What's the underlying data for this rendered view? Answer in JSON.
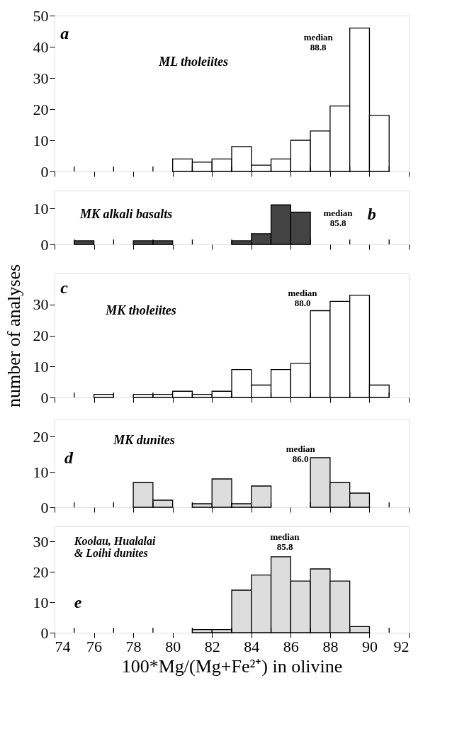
{
  "chart_data": [
    {
      "type": "histogram",
      "bins": [
        74,
        75,
        76,
        77,
        78,
        79,
        80,
        81,
        82,
        83,
        84,
        85,
        86,
        87,
        88,
        89,
        90,
        91
      ],
      "values": [
        0,
        0,
        0,
        0,
        0,
        0,
        4,
        3,
        4,
        8,
        2,
        4,
        10,
        13,
        21,
        46,
        18
      ],
      "color": "#ffffff",
      "xlim": [
        74,
        92
      ],
      "ylim": [
        0,
        50
      ],
      "yticks": [
        0,
        10,
        20,
        30,
        40,
        50
      ],
      "xticks": [
        74,
        {
          "value": 75,
          "label": null
        },
        76,
        {
          "value": 77,
          "label": null
        },
        78,
        {
          "value": 79,
          "label": null
        },
        80,
        {
          "value": 81,
          "label": null
        },
        82,
        {
          "value": 83,
          "label": null
        },
        84,
        {
          "value": 85,
          "label": null
        },
        86,
        {
          "value": 87,
          "label": null
        },
        88,
        {
          "value": 89,
          "label": null
        },
        90,
        {
          "value": 91,
          "label": null
        },
        92
      ],
      "tick_labels": "y",
      "annotations": [
        "a",
        "ML  tholeiites",
        "median\n88.8"
      ]
    },
    {
      "type": "histogram",
      "bins": [
        74,
        75,
        76,
        77,
        78,
        79,
        80,
        81,
        82,
        83,
        84,
        85,
        86,
        87,
        88,
        89,
        90,
        91
      ],
      "values": [
        0,
        1,
        0,
        0,
        1,
        1,
        0,
        0,
        0,
        1,
        3,
        11,
        9,
        0,
        0,
        0,
        0
      ],
      "color": "#444444",
      "xlim": [
        74,
        92
      ],
      "ylim": [
        0,
        15
      ],
      "yticks": [
        0,
        10
      ],
      "xticks": [
        74,
        {
          "value": 75,
          "label": null
        },
        76,
        {
          "value": 77,
          "label": null
        },
        78,
        {
          "value": 79,
          "label": null
        },
        80,
        {
          "value": 81,
          "label": null
        },
        82,
        {
          "value": 83,
          "label": null
        },
        84,
        {
          "value": 85,
          "label": null
        },
        86,
        {
          "value": 87,
          "label": null
        },
        88,
        {
          "value": 89,
          "label": null
        },
        90,
        {
          "value": 91,
          "label": null
        },
        92
      ],
      "tick_labels": "y",
      "annotations": [
        "b",
        "MK  alkali  basalts",
        "median\n85.8"
      ]
    },
    {
      "type": "histogram",
      "bins": [
        74,
        75,
        76,
        77,
        78,
        79,
        80,
        81,
        82,
        83,
        84,
        85,
        86,
        87,
        88,
        89,
        90,
        91
      ],
      "values": [
        0,
        0,
        1,
        0,
        1,
        1,
        2,
        1,
        2,
        9,
        4,
        9,
        11,
        28,
        31,
        33,
        4
      ],
      "color": "#ffffff",
      "xlim": [
        74,
        92
      ],
      "ylim": [
        0,
        40
      ],
      "yticks": [
        0,
        10,
        20,
        30
      ],
      "ylabel": "number of analyses",
      "xticks": [
        74,
        {
          "value": 75,
          "label": null
        },
        76,
        {
          "value": 77,
          "label": null
        },
        78,
        {
          "value": 79,
          "label": null
        },
        80,
        {
          "value": 81,
          "label": null
        },
        82,
        {
          "value": 83,
          "label": null
        },
        84,
        {
          "value": 85,
          "label": null
        },
        86,
        {
          "value": 87,
          "label": null
        },
        88,
        {
          "value": 89,
          "label": null
        },
        90,
        {
          "value": 91,
          "label": null
        },
        92
      ],
      "tick_labels": "y",
      "annotations": [
        "c",
        "MK  tholeiites",
        "median\n88.0"
      ]
    },
    {
      "type": "histogram",
      "bins": [
        74,
        75,
        76,
        77,
        78,
        79,
        80,
        81,
        82,
        83,
        84,
        85,
        86,
        87,
        88,
        89,
        90,
        91
      ],
      "values": [
        0,
        0,
        0,
        0,
        7,
        2,
        0,
        1,
        8,
        1,
        6,
        0,
        0,
        14,
        7,
        4,
        0
      ],
      "color": "#dddddd",
      "xlim": [
        74,
        92
      ],
      "ylim": [
        0,
        25
      ],
      "yticks": [
        0,
        10,
        20
      ],
      "xticks": [
        74,
        {
          "value": 75,
          "label": null
        },
        76,
        {
          "value": 77,
          "label": null
        },
        78,
        {
          "value": 79,
          "label": null
        },
        80,
        {
          "value": 81,
          "label": null
        },
        82,
        {
          "value": 83,
          "label": null
        },
        84,
        {
          "value": 85,
          "label": null
        },
        86,
        {
          "value": 87,
          "label": null
        },
        88,
        {
          "value": 89,
          "label": null
        },
        90,
        {
          "value": 91,
          "label": null
        },
        92
      ],
      "tick_labels": "y",
      "annotations": [
        "d",
        "MK  dunites",
        "median\n86.0"
      ]
    },
    {
      "type": "histogram",
      "bins": [
        74,
        75,
        76,
        77,
        78,
        79,
        80,
        81,
        82,
        83,
        84,
        85,
        86,
        87,
        88,
        89,
        90,
        91
      ],
      "values": [
        0,
        0,
        0,
        0,
        0,
        0,
        0,
        1,
        1,
        14,
        19,
        25,
        17,
        21,
        17,
        2,
        0
      ],
      "color": "#dddddd",
      "xlim": [
        74,
        92
      ],
      "ylim": [
        0,
        35
      ],
      "yticks": [
        0,
        10,
        20,
        30
      ],
      "xlabel": "100*Mg/(Mg+Fe²⁺) in olivine",
      "xticks": [
        74,
        {
          "value": 75,
          "label": null
        },
        76,
        {
          "value": 77,
          "label": null
        },
        78,
        {
          "value": 79,
          "label": null
        },
        80,
        {
          "value": 81,
          "label": null
        },
        82,
        {
          "value": 83,
          "label": null
        },
        84,
        {
          "value": 85,
          "label": null
        },
        86,
        {
          "value": 87,
          "label": null
        },
        88,
        {
          "value": 89,
          "label": null
        },
        90,
        {
          "value": 91,
          "label": null
        },
        92
      ],
      "annotations": [
        "e",
        "Koolau,  Hualalai\n& Loihi  dunites",
        "median\n85.8"
      ]
    }
  ]
}
